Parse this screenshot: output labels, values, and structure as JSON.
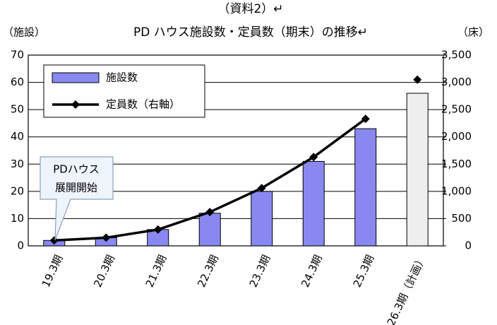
{
  "chart_data": {
    "type": "bar_line",
    "title": "（資料2）↵",
    "subtitle": "PD ハウス施設数・定員数（期末）の推移↵",
    "y_label": "（施設）",
    "y2_label": "（床）",
    "categories": [
      "19.3期",
      "20.3期",
      "21.3期",
      "22.3期",
      "23.3期",
      "24.3期",
      "25.3期",
      "26.3期（計画）"
    ],
    "series": [
      {
        "name": "施設数",
        "type": "bar",
        "color": "#8888f0",
        "colors": [
          "#8888f0",
          "#8888f0",
          "#8888f0",
          "#8888f0",
          "#8888f0",
          "#8888f0",
          "#8888f0",
          "#eeeeee"
        ],
        "values": [
          2,
          3,
          6,
          12,
          20,
          31,
          43,
          56
        ]
      },
      {
        "name": "定員数（右軸）",
        "type": "line",
        "axis": "y2",
        "color": "#000000",
        "line_unjoined_from": 7,
        "values": [
          100,
          150,
          300,
          620,
          1060,
          1630,
          2330,
          3050
        ]
      }
    ],
    "ylim": [
      0,
      70
    ],
    "yticks": [
      0,
      10,
      20,
      30,
      40,
      50,
      60,
      70
    ],
    "y2lim": [
      0,
      3500
    ],
    "y2ticks": [
      0,
      500,
      {
        "value": 1000,
        "label": "1,000"
      },
      {
        "value": 1500,
        "label": "1,500"
      },
      {
        "value": 2000,
        "label": "2,000"
      },
      {
        "value": 2500,
        "label": "2,500"
      },
      {
        "value": 3000,
        "label": "3,000"
      },
      {
        "value": 3500,
        "label": "3,500"
      }
    ],
    "grid": true,
    "legend": "top-left",
    "annotation": {
      "lines": [
        "PDハウス",
        "展開開始"
      ]
    }
  }
}
